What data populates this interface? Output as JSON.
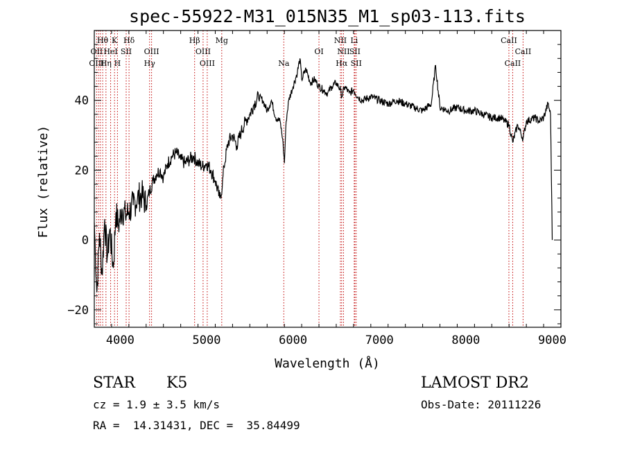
{
  "chart_data": {
    "type": "line",
    "title": "spec-55922-M31_015N35_M1_sp03-113.fits",
    "xlabel": "Wavelength (Å)",
    "ylabel": "Flux (relative)",
    "xlim": [
      3700,
      9100
    ],
    "ylim": [
      -25,
      60
    ],
    "x_ticks": [
      4000,
      5000,
      6000,
      7000,
      8000,
      9000
    ],
    "y_ticks": [
      -20,
      0,
      20,
      40
    ],
    "grid": false,
    "series": [
      {
        "x": [
          3700,
          3730,
          3760,
          3790,
          3820,
          3850,
          3880,
          3920,
          3950,
          3980,
          4020,
          4060,
          4100,
          4150,
          4200,
          4250,
          4300,
          4340,
          4380,
          4420,
          4460,
          4500,
          4550,
          4600,
          4650,
          4700,
          4750,
          4800,
          4850,
          4900,
          4950,
          5000,
          5050,
          5100,
          5150,
          5180,
          5200,
          5250,
          5300,
          5350,
          5400,
          5450,
          5500,
          5550,
          5600,
          5650,
          5700,
          5750,
          5800,
          5850,
          5880,
          5900,
          5920,
          5950,
          6000,
          6050,
          6080,
          6100,
          6150,
          6200,
          6250,
          6300,
          6350,
          6400,
          6450,
          6500,
          6550,
          6563,
          6600,
          6650,
          6700,
          6750,
          6800,
          6900,
          7000,
          7100,
          7200,
          7300,
          7400,
          7500,
          7600,
          7650,
          7700,
          7800,
          7900,
          8000,
          8100,
          8200,
          8300,
          8400,
          8450,
          8500,
          8542,
          8600,
          8662,
          8700,
          8800,
          8850,
          8900,
          8950,
          8980,
          9000
        ],
        "y": [
          5,
          -15,
          2,
          -10,
          6,
          -5,
          3,
          -8,
          8,
          4,
          9,
          7,
          8,
          10,
          12,
          13,
          10,
          14,
          17,
          19,
          20,
          18,
          22,
          24,
          25,
          23,
          22,
          23,
          24,
          22,
          21,
          22,
          20,
          17,
          12,
          15,
          21,
          28,
          30,
          27,
          31,
          34,
          36,
          39,
          41,
          40,
          37,
          40,
          35,
          34,
          29,
          22,
          34,
          40,
          44,
          48,
          52,
          46,
          49,
          45,
          46,
          44,
          43,
          42,
          44,
          45,
          43,
          41,
          44,
          42,
          43,
          41,
          40,
          41,
          40,
          39,
          40,
          39,
          38,
          37,
          39,
          50,
          38,
          37,
          38,
          37,
          37,
          36,
          35,
          35,
          34,
          33,
          28,
          33,
          29,
          34,
          35,
          34,
          35,
          39,
          36,
          0
        ]
      }
    ],
    "line_labels": [
      {
        "text": "Hθ",
        "x": 3797,
        "row": 1
      },
      {
        "text": "K",
        "x": 3934,
        "row": 1
      },
      {
        "text": "Hδ",
        "x": 4102,
        "row": 1
      },
      {
        "text": "Hβ",
        "x": 4861,
        "row": 1
      },
      {
        "text": "Mg",
        "x": 5175,
        "row": 1
      },
      {
        "text": "NII",
        "x": 6548,
        "row": 1
      },
      {
        "text": "Li",
        "x": 6708,
        "row": 1
      },
      {
        "text": "CaII",
        "x": 8498,
        "row": 1
      },
      {
        "text": "OII",
        "x": 3727,
        "row": 2
      },
      {
        "text": "HeI",
        "x": 3889,
        "row": 2
      },
      {
        "text": "SII",
        "x": 4069,
        "row": 2
      },
      {
        "text": "OIII",
        "x": 4363,
        "row": 2
      },
      {
        "text": "OIII",
        "x": 4959,
        "row": 2
      },
      {
        "text": "OI",
        "x": 6300,
        "row": 2
      },
      {
        "text": "NII",
        "x": 6584,
        "row": 2
      },
      {
        "text": "SII",
        "x": 6716,
        "row": 2
      },
      {
        "text": "CaII",
        "x": 8662,
        "row": 2
      },
      {
        "text": "OIII",
        "x": 3727,
        "row": 3
      },
      {
        "text": "Hη",
        "x": 3835,
        "row": 3
      },
      {
        "text": "H",
        "x": 3968,
        "row": 3
      },
      {
        "text": "Hγ",
        "x": 4340,
        "row": 3
      },
      {
        "text": "OIII",
        "x": 5007,
        "row": 3
      },
      {
        "text": "Na",
        "x": 5893,
        "row": 3
      },
      {
        "text": "Hα",
        "x": 6563,
        "row": 3
      },
      {
        "text": "SII",
        "x": 6731,
        "row": 3
      },
      {
        "text": "CaII",
        "x": 8542,
        "row": 3
      }
    ],
    "marker_lines": [
      3727,
      3750,
      3770,
      3797,
      3835,
      3889,
      3934,
      3968,
      4069,
      4102,
      4340,
      4363,
      4861,
      4959,
      5007,
      5175,
      5893,
      6300,
      6548,
      6563,
      6584,
      6708,
      6716,
      6731,
      8498,
      8542,
      8662
    ],
    "marker_color": "#c00000"
  },
  "info": {
    "class": "STAR",
    "subclass": "K5",
    "survey": "LAMOST DR2",
    "cz": "cz = 1.9 ± 3.5 km/s",
    "obs_date": "Obs-Date: 20111226",
    "coords": "RA =  14.31431, DEC =  35.84499"
  }
}
